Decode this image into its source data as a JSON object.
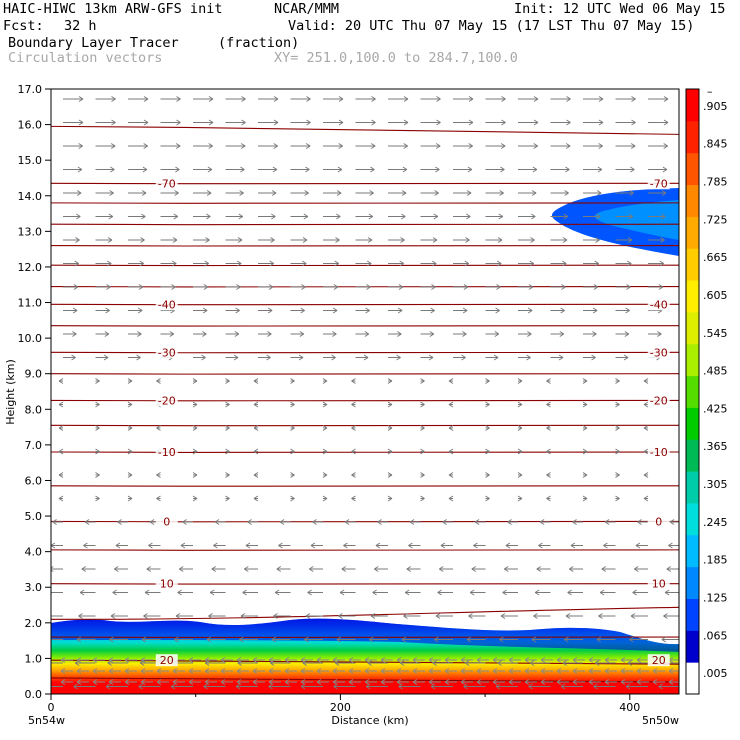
{
  "header": {
    "model_line": "HAIC-HIWC 13km ARW-GFS init",
    "org": "NCAR/MMM",
    "init": "Init: 12 UTC Wed 06 May 15",
    "fcst_label": "Fcst:",
    "fcst_value": "32 h",
    "valid": "Valid: 20 UTC Thu 07 May 15 (17 LST Thu 07 May 15)",
    "field_name": "Boundary Layer Tracer",
    "field_units": "(fraction)",
    "vector_label": "Circulation vectors",
    "xy_range": "XY= 251.0,100.0 to 284.7,100.0"
  },
  "chart_data": {
    "type": "heatmap",
    "title": "Boundary Layer Tracer",
    "units": "(fraction)",
    "xlabel": "Distance (km)",
    "ylabel": "Height (km)",
    "xlim": [
      0,
      434
    ],
    "ylim": [
      0,
      17
    ],
    "x_ticks": [
      "0",
      "200",
      "400"
    ],
    "x_tick_values": [
      0,
      200,
      400
    ],
    "y_ticks": [
      "0.0",
      "1.0",
      "2.0",
      "3.0",
      "4.0",
      "5.0",
      "6.0",
      "7.0",
      "8.0",
      "9.0",
      "10.0",
      "11.0",
      "12.0",
      "13.0",
      "14.0",
      "15.0",
      "16.0",
      "17.0"
    ],
    "x_endpoint_labels": {
      "left": "5n54w",
      "right": "5n50w"
    },
    "colorbar": {
      "labels": [
        ".005",
        ".065",
        ".125",
        ".185",
        ".245",
        ".305",
        ".365",
        ".425",
        ".485",
        ".545",
        ".605",
        ".665",
        ".725",
        ".785",
        ".845",
        ".905"
      ],
      "top_label": "–",
      "colors": [
        "#ffffff",
        "#0000cc",
        "#0044ff",
        "#0088ff",
        "#00bbff",
        "#00dddd",
        "#00ccaa",
        "#00bb55",
        "#00cc00",
        "#55dd00",
        "#aaee00",
        "#ddee00",
        "#ffee00",
        "#ffcc00",
        "#ffaa00",
        "#ff8800",
        "#ff5500",
        "#ff2200",
        "#ff0000"
      ]
    },
    "temperature_contours": {
      "labeled": [
        {
          "label": "-70",
          "height_km": 14.35
        },
        {
          "label": "-40",
          "height_km": 10.95
        },
        {
          "label": "-30",
          "height_km": 9.6
        },
        {
          "label": "-20",
          "height_km": 8.25
        },
        {
          "label": "-10",
          "height_km": 6.8
        },
        {
          "label": "0",
          "height_km": 4.85
        },
        {
          "label": "10",
          "height_km": 3.1
        },
        {
          "label": "20",
          "height_km": 0.95
        }
      ],
      "unlabeled_heights_km": [
        15.95,
        13.8,
        13.2,
        12.6,
        12.05,
        11.45,
        10.35,
        9.0,
        7.55,
        5.85,
        4.05,
        2.1,
        1.6,
        0.45
      ]
    },
    "vectors": "circulation vectors, eastward aloft and westward below about 5 km"
  }
}
